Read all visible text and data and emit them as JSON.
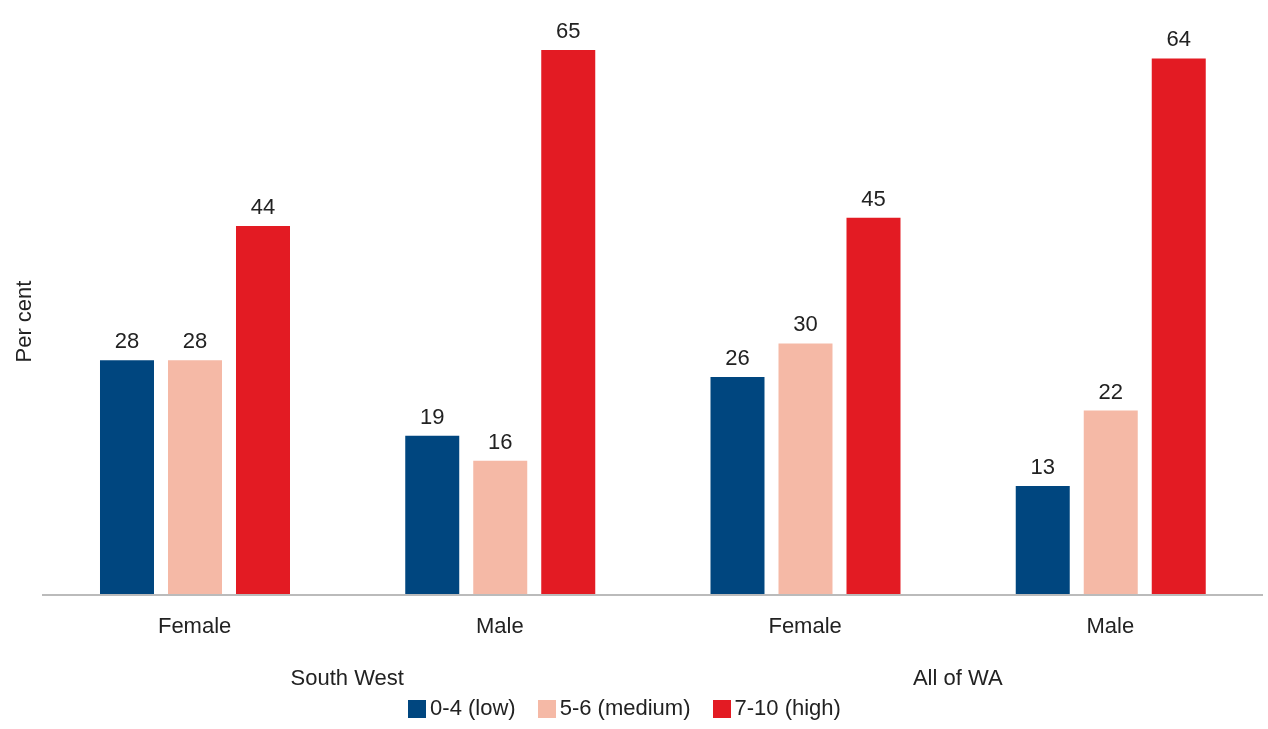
{
  "chart_data": {
    "type": "bar",
    "ylabel": "Per cent",
    "categories": [
      "Female",
      "Male",
      "Female",
      "Male"
    ],
    "annotations": [
      "South West",
      "All of WA"
    ],
    "series": [
      {
        "name": "0-4 (low)",
        "color": "#00467f",
        "values": [
          28,
          19,
          26,
          13
        ]
      },
      {
        "name": "5-6 (medium)",
        "color": "#f5b9a6",
        "values": [
          28,
          16,
          30,
          22
        ]
      },
      {
        "name": "7-10 (high)",
        "color": "#e31b23",
        "values": [
          44,
          65,
          45,
          64
        ]
      }
    ],
    "data_labels": true,
    "legend": "bottom",
    "grid": false
  }
}
